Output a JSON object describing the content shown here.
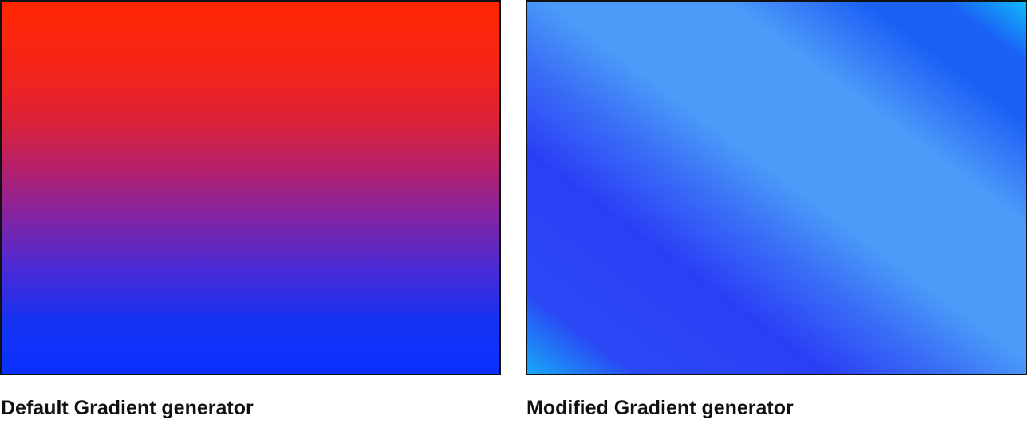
{
  "panels": [
    {
      "caption": "Default Gradient generator",
      "colors": [
        "#ff2600",
        "#0b30ff"
      ]
    },
    {
      "caption": "Modified Gradient generator",
      "colors": [
        "#18a8f6",
        "#2a3ff5",
        "#4a9cf8",
        "#1a60f5",
        "#10b8f8"
      ]
    }
  ]
}
